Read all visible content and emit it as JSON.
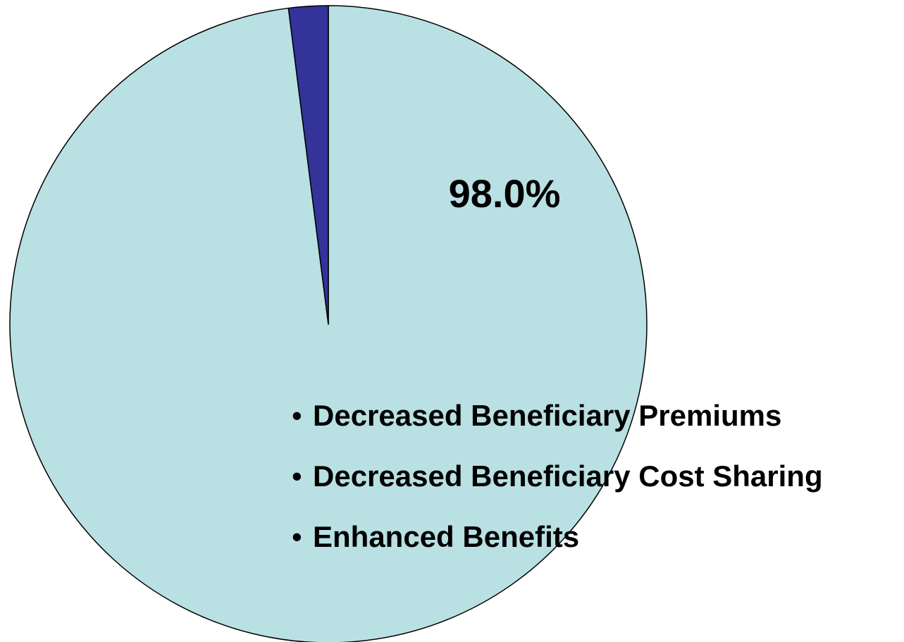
{
  "chart_data": {
    "type": "pie",
    "slices": [
      {
        "value": 98.0,
        "color": "#B9E0E3",
        "data_label": "98.0%"
      },
      {
        "value": 2.0,
        "color": "#333399",
        "data_label": ""
      }
    ],
    "annotations": [
      "Decreased Beneficiary Premiums",
      "Decreased Beneficiary Cost Sharing",
      "Enhanced Benefits"
    ],
    "legend": "none"
  }
}
